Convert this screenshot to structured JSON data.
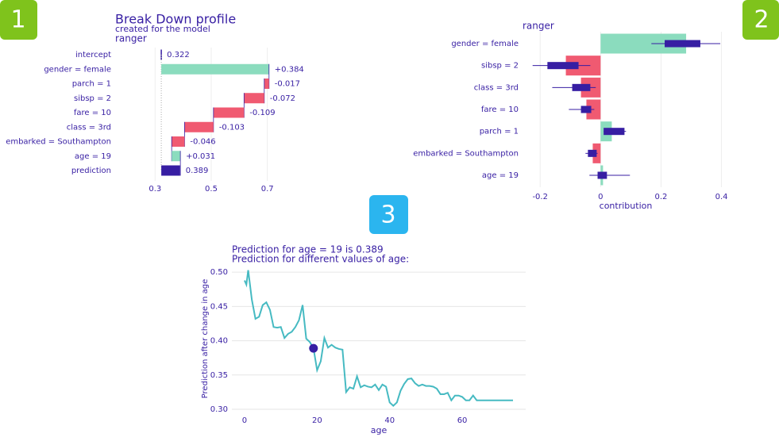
{
  "badges": [
    "1",
    "2",
    "3"
  ],
  "chart_data": [
    {
      "type": "waterfall",
      "title": "Break Down profile",
      "subtitle": "created for the  model",
      "model": "ranger",
      "categories": [
        "intercept",
        "gender = female",
        "parch = 1",
        "sibsp = 2",
        "fare = 10",
        "class = 3rd",
        "embarked = Southampton",
        "age = 19",
        "prediction"
      ],
      "values": [
        0.322,
        0.384,
        -0.017,
        -0.072,
        -0.109,
        -0.103,
        -0.046,
        0.031,
        0.389
      ],
      "value_labels": [
        "0.322",
        "+0.384",
        "-0.017",
        "-0.072",
        "-0.109",
        "-0.103",
        "-0.046",
        "+0.031",
        "0.389"
      ],
      "positive_color": "#8bdcbe",
      "negative_color": "#f05a71",
      "prediction_color": "#371ea3",
      "xlim": [
        0.2,
        0.8
      ],
      "xticks": [
        0.3,
        0.5,
        0.7
      ],
      "grid": true
    },
    {
      "type": "bar",
      "title": "ranger",
      "xlabel": "contribution",
      "categories": [
        "gender = female",
        "sibsp = 2",
        "class = 3rd",
        "fare = 10",
        "parch = 1",
        "embarked = Southampton",
        "age = 19"
      ],
      "values": [
        0.283,
        -0.115,
        -0.065,
        -0.047,
        0.037,
        -0.026,
        0.008
      ],
      "boxes": [
        [
          0.168,
          0.212,
          0.33,
          0.396
        ],
        [
          -0.225,
          -0.176,
          -0.073,
          -0.034
        ],
        [
          -0.16,
          -0.094,
          -0.034,
          -0.016
        ],
        [
          -0.105,
          -0.065,
          -0.031,
          -0.021
        ],
        [
          0.01,
          0.01,
          0.079,
          0.084
        ],
        [
          -0.05,
          -0.042,
          -0.013,
          -0.01
        ],
        [
          -0.037,
          -0.01,
          0.021,
          0.097
        ]
      ],
      "positive_color": "#8bdcbe",
      "negative_color": "#f05a71",
      "box_color": "#371ea3",
      "xlim": [
        -0.24,
        0.43
      ],
      "xticks": [
        -0.2,
        0,
        0.2,
        0.4
      ],
      "grid": true
    },
    {
      "type": "line",
      "title": "Prediction for age = 19 is 0.389",
      "subtitle": "Prediction for different values of age:",
      "xlabel": "age",
      "ylabel": "Prediction after change in age",
      "color": "#46bac2",
      "point_color": "#371ea3",
      "point": {
        "x": 19,
        "y": 0.389
      },
      "x": [
        0,
        0.5,
        1,
        2,
        3,
        4,
        5,
        6,
        7,
        8,
        9,
        10,
        11,
        12,
        13,
        14,
        15,
        16,
        17,
        18,
        19,
        20,
        21,
        22,
        23,
        24,
        25,
        26,
        27,
        28,
        29,
        30,
        31,
        32,
        33,
        34,
        35,
        36,
        37,
        38,
        39,
        40,
        41,
        42,
        43,
        44,
        45,
        46,
        47,
        48,
        49,
        50,
        51,
        52,
        53,
        54,
        55,
        56,
        57,
        58,
        59,
        60,
        61,
        62,
        63,
        64,
        66,
        68,
        70,
        72,
        74
      ],
      "values": [
        0.488,
        0.482,
        0.503,
        0.46,
        0.432,
        0.435,
        0.452,
        0.456,
        0.445,
        0.42,
        0.419,
        0.42,
        0.404,
        0.41,
        0.413,
        0.42,
        0.43,
        0.452,
        0.403,
        0.398,
        0.389,
        0.357,
        0.37,
        0.404,
        0.39,
        0.394,
        0.39,
        0.388,
        0.387,
        0.325,
        0.332,
        0.33,
        0.348,
        0.332,
        0.335,
        0.333,
        0.332,
        0.336,
        0.328,
        0.336,
        0.333,
        0.31,
        0.305,
        0.31,
        0.327,
        0.337,
        0.344,
        0.345,
        0.338,
        0.334,
        0.336,
        0.334,
        0.334,
        0.333,
        0.33,
        0.322,
        0.322,
        0.324,
        0.313,
        0.32,
        0.32,
        0.318,
        0.313,
        0.313,
        0.32,
        0.313,
        0.313,
        0.313,
        0.313,
        0.313,
        0.313
      ],
      "xlim": [
        -3.5,
        77.5
      ],
      "ylim": [
        0.2965,
        0.506
      ],
      "xticks": [
        0,
        20,
        40,
        60
      ],
      "yticks": [
        {
          "value": 0.3,
          "label": "0.30"
        },
        0.35,
        {
          "value": 0.4,
          "label": "0.40"
        },
        0.45,
        {
          "value": 0.5,
          "label": "0.50"
        }
      ],
      "grid": true
    }
  ]
}
